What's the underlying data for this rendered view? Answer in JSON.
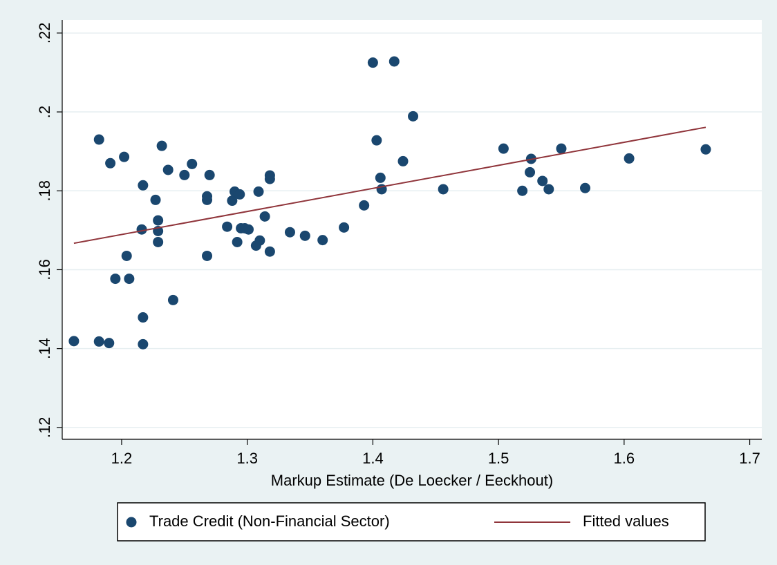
{
  "chart_data": {
    "type": "scatter",
    "x_label": "Markup Estimate (De Loecker / Eeckhout)",
    "xlim": [
      1.1527,
      1.7096
    ],
    "xticks": [
      {
        "value": 1.2,
        "label": "1.2"
      },
      {
        "value": 1.3,
        "label": "1.3"
      },
      {
        "value": 1.4,
        "label": "1.4"
      },
      {
        "value": 1.5,
        "label": "1.5"
      },
      {
        "value": 1.6,
        "label": "1.6"
      },
      {
        "value": 1.7,
        "label": "1.7"
      }
    ],
    "ylim": [
      0.117,
      0.2233
    ],
    "yticks": [
      {
        "value": 0.12,
        "label": ".12"
      },
      {
        "value": 0.14,
        "label": ".14"
      },
      {
        "value": 0.16,
        "label": ".16"
      },
      {
        "value": 0.18,
        "label": ".18"
      },
      {
        "value": 0.2,
        "label": ".2"
      },
      {
        "value": 0.22,
        "label": ".22"
      }
    ],
    "grid": true,
    "legend": "bottom",
    "series": [
      {
        "name": "Trade Credit (Non-Financial Sector)",
        "color": "#1a476f",
        "mode": "markers",
        "x": [
          1.162,
          1.182,
          1.19,
          1.217,
          1.217,
          1.241,
          1.195,
          1.206,
          1.204,
          1.268,
          1.229,
          1.216,
          1.229,
          1.229,
          1.227,
          1.217,
          1.182,
          1.191,
          1.202,
          1.232,
          1.237,
          1.25,
          1.256,
          1.27,
          1.268,
          1.268,
          1.288,
          1.29,
          1.294,
          1.284,
          1.292,
          1.295,
          1.298,
          1.301,
          1.307,
          1.31,
          1.309,
          1.314,
          1.318,
          1.318,
          1.318,
          1.334,
          1.346,
          1.36,
          1.377,
          1.393,
          1.4,
          1.417,
          1.403,
          1.432,
          1.424,
          1.406,
          1.407,
          1.456,
          1.504,
          1.519,
          1.525,
          1.526,
          1.535,
          1.54,
          1.55,
          1.569,
          1.604,
          1.665
        ],
        "values": [
          0.1419,
          0.1418,
          0.1414,
          0.1411,
          0.1479,
          0.1523,
          0.1577,
          0.1577,
          0.1635,
          0.1635,
          0.167,
          0.1702,
          0.1698,
          0.1725,
          0.1777,
          0.1814,
          0.193,
          0.187,
          0.1886,
          0.1914,
          0.1853,
          0.184,
          0.1868,
          0.184,
          0.1786,
          0.1777,
          0.1775,
          0.1798,
          0.1791,
          0.1709,
          0.167,
          0.1705,
          0.1705,
          0.1702,
          0.1661,
          0.1674,
          0.1798,
          0.1735,
          0.1839,
          0.183,
          0.1646,
          0.1695,
          0.1686,
          0.1675,
          0.1707,
          0.1763,
          0.2125,
          0.2128,
          0.1928,
          0.1989,
          0.1875,
          0.1833,
          0.1804,
          0.1804,
          0.1907,
          0.18,
          0.1847,
          0.1881,
          0.1825,
          0.1804,
          0.1907,
          0.1807,
          0.1882,
          0.1905
        ]
      },
      {
        "name": "Fitted values",
        "color": "#90353b",
        "mode": "line",
        "x": [
          1.162,
          1.665
        ],
        "values": [
          0.1667,
          0.1961
        ]
      }
    ]
  }
}
